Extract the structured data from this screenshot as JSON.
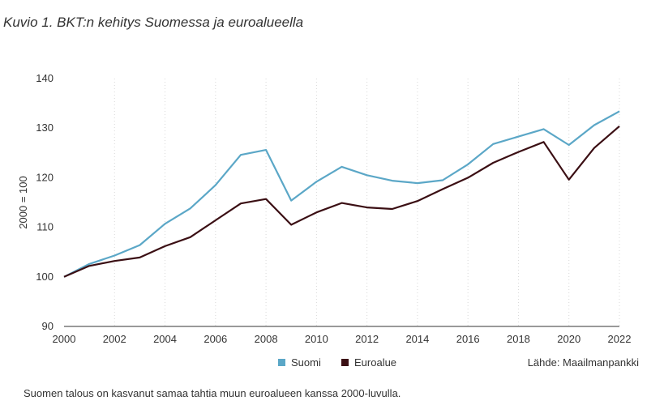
{
  "figure": {
    "title": "Kuvio 1. BKT:n kehitys Suomessa ja euroalueella",
    "caption": "Suomen talous on kasvanut samaa tahtia muun euroalueen kanssa 2000-luvulla.",
    "source": "Lähde: Maailmanpankki"
  },
  "chart_data": {
    "type": "line",
    "title": "Kuvio 1. BKT:n kehitys Suomessa ja euroalueella",
    "xlabel": "",
    "ylabel": "2000 = 100",
    "xlim": [
      2000,
      2022
    ],
    "ylim": [
      90,
      140
    ],
    "x_ticks": [
      "2000",
      "2002",
      "2004",
      "2006",
      "2008",
      "2010",
      "2012",
      "2014",
      "2016",
      "2018",
      "2020",
      "2022"
    ],
    "y_ticks": [
      "90",
      "100",
      "110",
      "120",
      "130",
      "140"
    ],
    "grid": "vertical dotted",
    "legend_position": "bottom-center",
    "x": [
      2000,
      2001,
      2002,
      2003,
      2004,
      2005,
      2006,
      2007,
      2008,
      2009,
      2010,
      2011,
      2012,
      2013,
      2014,
      2015,
      2016,
      2017,
      2018,
      2019,
      2020,
      2021,
      2022
    ],
    "series": [
      {
        "name": "Suomi",
        "color": "#5ba7c7",
        "values": [
          100,
          102.6,
          104.3,
          106.4,
          110.7,
          113.8,
          118.5,
          124.6,
          125.6,
          115.4,
          119.2,
          122.2,
          120.5,
          119.4,
          118.9,
          119.5,
          122.7,
          126.8,
          128.3,
          129.8,
          126.6,
          130.6,
          133.4
        ]
      },
      {
        "name": "Euroalue",
        "color": "#3b0f14",
        "values": [
          100,
          102.2,
          103.2,
          103.9,
          106.2,
          108.0,
          111.4,
          114.8,
          115.7,
          110.5,
          113.0,
          114.9,
          114.0,
          113.7,
          115.3,
          117.7,
          120.0,
          123.0,
          125.2,
          127.2,
          119.6,
          126.0,
          130.4
        ]
      }
    ]
  }
}
